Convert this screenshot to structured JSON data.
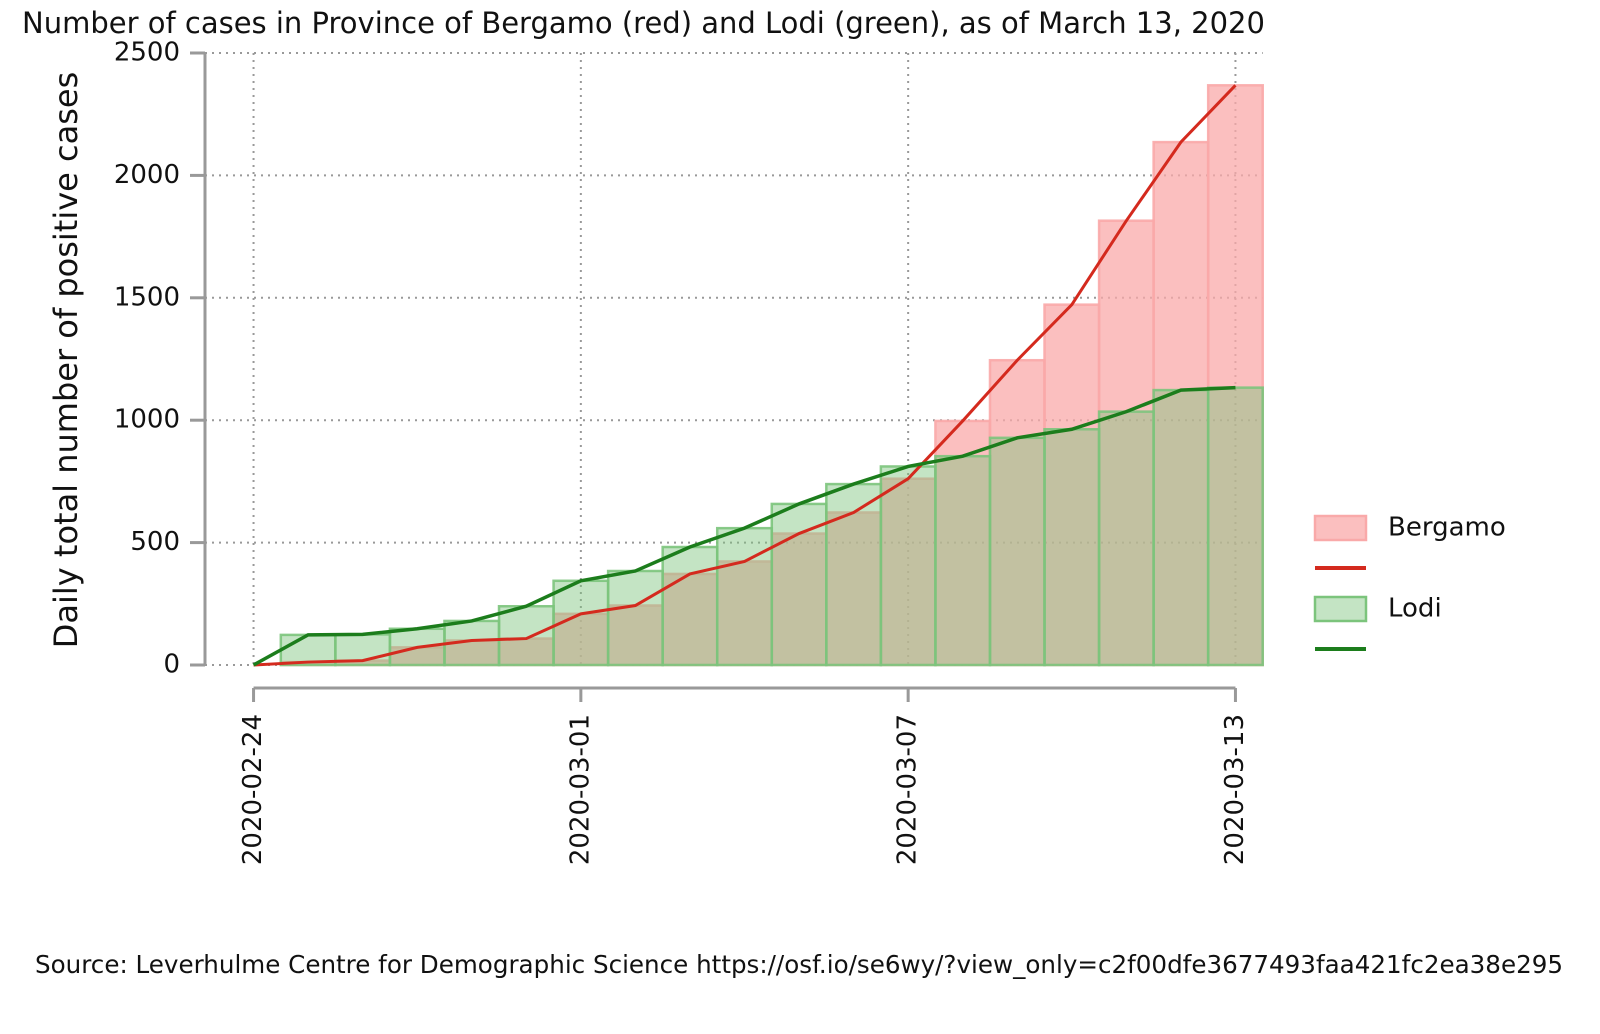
{
  "chart_data": {
    "type": "bar",
    "title": "Number of cases in Province of Bergamo (red) and Lodi (green), as of March 13, 2020",
    "y_label": "Daily total number of positive cases",
    "source": "Source: Leverhulme Centre for Demographic Science https://osf.io/se6wy/?view_only=c2f00dfe3677493faa421fc2ea38e295",
    "x": [
      "2020-02-24",
      "2020-02-25",
      "2020-02-26",
      "2020-02-27",
      "2020-02-28",
      "2020-02-29",
      "2020-03-01",
      "2020-03-02",
      "2020-03-03",
      "2020-03-04",
      "2020-03-05",
      "2020-03-06",
      "2020-03-07",
      "2020-03-08",
      "2020-03-09",
      "2020-03-10",
      "2020-03-11",
      "2020-03-12",
      "2020-03-13"
    ],
    "xlim": [
      "2020-02-23",
      "2020-03-14"
    ],
    "xticks": [
      "2020-02-24",
      "2020-03-01",
      "2020-03-07",
      "2020-03-13"
    ],
    "ylim": [
      0,
      2500
    ],
    "yticks": [
      0,
      500,
      1000,
      1500,
      2000,
      2500
    ],
    "grid": true,
    "legend": "right",
    "series": [
      {
        "name": "Bergamo",
        "color": "#d42a1e",
        "fill": "#f9a9a9",
        "values": [
          0,
          12,
          18,
          72,
          100,
          108,
          209,
          243,
          372,
          423,
          537,
          623,
          761,
          997,
          1245,
          1472,
          1815,
          2136,
          2368
        ]
      },
      {
        "name": "Lodi",
        "color": "#1c7d1c",
        "fill": "#7cc47c",
        "values": [
          0,
          123,
          125,
          148,
          180,
          240,
          344,
          384,
          482,
          559,
          658,
          739,
          811,
          853,
          928,
          963,
          1035,
          1123,
          1133
        ]
      }
    ]
  }
}
